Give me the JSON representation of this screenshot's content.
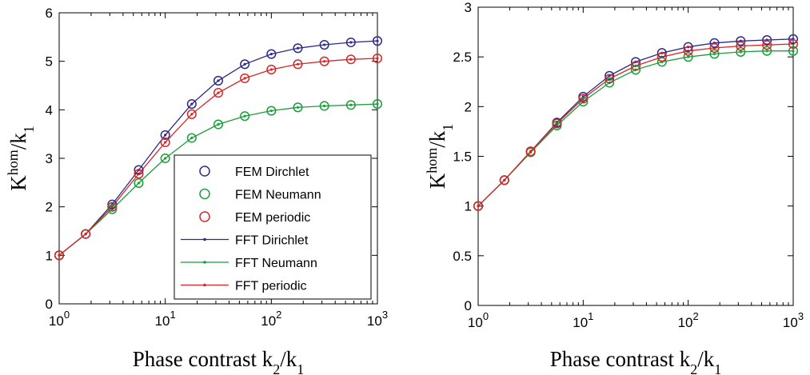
{
  "chart_data": [
    {
      "type": "line",
      "xscale": "log",
      "xlim": [
        1,
        1000
      ],
      "ylim": [
        0,
        6
      ],
      "yticks": [
        0,
        1,
        2,
        3,
        4,
        5,
        6
      ],
      "xticks": [
        1,
        10,
        100,
        1000
      ],
      "xtick_labels": [
        {
          "base": "10",
          "exp": "0"
        },
        {
          "base": "10",
          "exp": "1"
        },
        {
          "base": "10",
          "exp": "2"
        },
        {
          "base": "10",
          "exp": "3"
        }
      ],
      "xlabel": "Phase contrast k_2/k_1",
      "ylabel": "K^{hom}/k_1",
      "legend_position": "bottom-right",
      "x": [
        1,
        1.778,
        3.162,
        5.623,
        10,
        17.78,
        31.62,
        56.23,
        100,
        177.8,
        316.2,
        562.3,
        1000
      ],
      "series": [
        {
          "name": "FEM Dirchlet",
          "kind": "markers",
          "color": "#2e2a8a",
          "values": [
            1.0,
            1.44,
            2.05,
            2.76,
            3.48,
            4.12,
            4.6,
            4.94,
            5.15,
            5.27,
            5.34,
            5.39,
            5.42
          ]
        },
        {
          "name": "FEM Neumann",
          "kind": "markers",
          "color": "#1a9e3a",
          "values": [
            1.0,
            1.44,
            1.95,
            2.49,
            3.0,
            3.42,
            3.7,
            3.87,
            3.98,
            4.05,
            4.08,
            4.1,
            4.12
          ]
        },
        {
          "name": "FEM periodic",
          "kind": "markers",
          "color": "#d62728",
          "values": [
            1.0,
            1.44,
            2.0,
            2.68,
            3.33,
            3.91,
            4.35,
            4.65,
            4.83,
            4.94,
            5.0,
            5.04,
            5.06
          ]
        },
        {
          "name": "FFT Dirichlet",
          "kind": "line",
          "color": "#2e2a8a",
          "values": [
            1.0,
            1.44,
            2.05,
            2.76,
            3.48,
            4.12,
            4.6,
            4.94,
            5.15,
            5.27,
            5.34,
            5.39,
            5.42
          ]
        },
        {
          "name": "FFT Neumann",
          "kind": "line",
          "color": "#1a9e3a",
          "values": [
            1.0,
            1.44,
            1.95,
            2.49,
            3.0,
            3.42,
            3.7,
            3.87,
            3.98,
            4.05,
            4.08,
            4.1,
            4.12
          ]
        },
        {
          "name": "FFT periodic",
          "kind": "line",
          "color": "#d62728",
          "values": [
            1.0,
            1.44,
            2.0,
            2.68,
            3.33,
            3.91,
            4.35,
            4.65,
            4.83,
            4.94,
            5.0,
            5.04,
            5.06
          ]
        }
      ]
    },
    {
      "type": "line",
      "xscale": "log",
      "xlim": [
        1,
        1000
      ],
      "ylim": [
        0,
        3
      ],
      "yticks": [
        0,
        0.5,
        1,
        1.5,
        2,
        2.5,
        3
      ],
      "xticks": [
        1,
        10,
        100,
        1000
      ],
      "xtick_labels": [
        {
          "base": "10",
          "exp": "0"
        },
        {
          "base": "10",
          "exp": "1"
        },
        {
          "base": "10",
          "exp": "2"
        },
        {
          "base": "10",
          "exp": "3"
        }
      ],
      "xlabel": "Phase contrast k_2/k_1",
      "ylabel": "K^{hom}/k_1",
      "x": [
        1,
        1.778,
        3.162,
        5.623,
        10,
        17.78,
        31.62,
        56.23,
        100,
        177.8,
        316.2,
        562.3,
        1000
      ],
      "series": [
        {
          "name": "FEM Dirchlet",
          "kind": "markers",
          "color": "#2e2a8a",
          "values": [
            1.0,
            1.26,
            1.55,
            1.84,
            2.1,
            2.31,
            2.45,
            2.54,
            2.6,
            2.64,
            2.66,
            2.67,
            2.68
          ]
        },
        {
          "name": "FEM Neumann",
          "kind": "markers",
          "color": "#1a9e3a",
          "values": [
            1.0,
            1.26,
            1.54,
            1.81,
            2.05,
            2.24,
            2.37,
            2.45,
            2.5,
            2.53,
            2.55,
            2.56,
            2.56
          ]
        },
        {
          "name": "FEM periodic",
          "kind": "markers",
          "color": "#d62728",
          "values": [
            1.0,
            1.26,
            1.55,
            1.83,
            2.08,
            2.28,
            2.41,
            2.5,
            2.56,
            2.59,
            2.61,
            2.62,
            2.63
          ]
        },
        {
          "name": "FFT Dirichlet",
          "kind": "line",
          "color": "#2e2a8a",
          "values": [
            1.0,
            1.26,
            1.55,
            1.84,
            2.1,
            2.31,
            2.45,
            2.54,
            2.6,
            2.64,
            2.66,
            2.67,
            2.68
          ]
        },
        {
          "name": "FFT Neumann",
          "kind": "line",
          "color": "#1a9e3a",
          "values": [
            1.0,
            1.26,
            1.54,
            1.81,
            2.05,
            2.24,
            2.37,
            2.45,
            2.5,
            2.53,
            2.55,
            2.56,
            2.56
          ]
        },
        {
          "name": "FFT periodic",
          "kind": "line",
          "color": "#d62728",
          "values": [
            1.0,
            1.26,
            1.55,
            1.83,
            2.08,
            2.28,
            2.41,
            2.5,
            2.56,
            2.59,
            2.61,
            2.62,
            2.63
          ]
        }
      ]
    }
  ]
}
